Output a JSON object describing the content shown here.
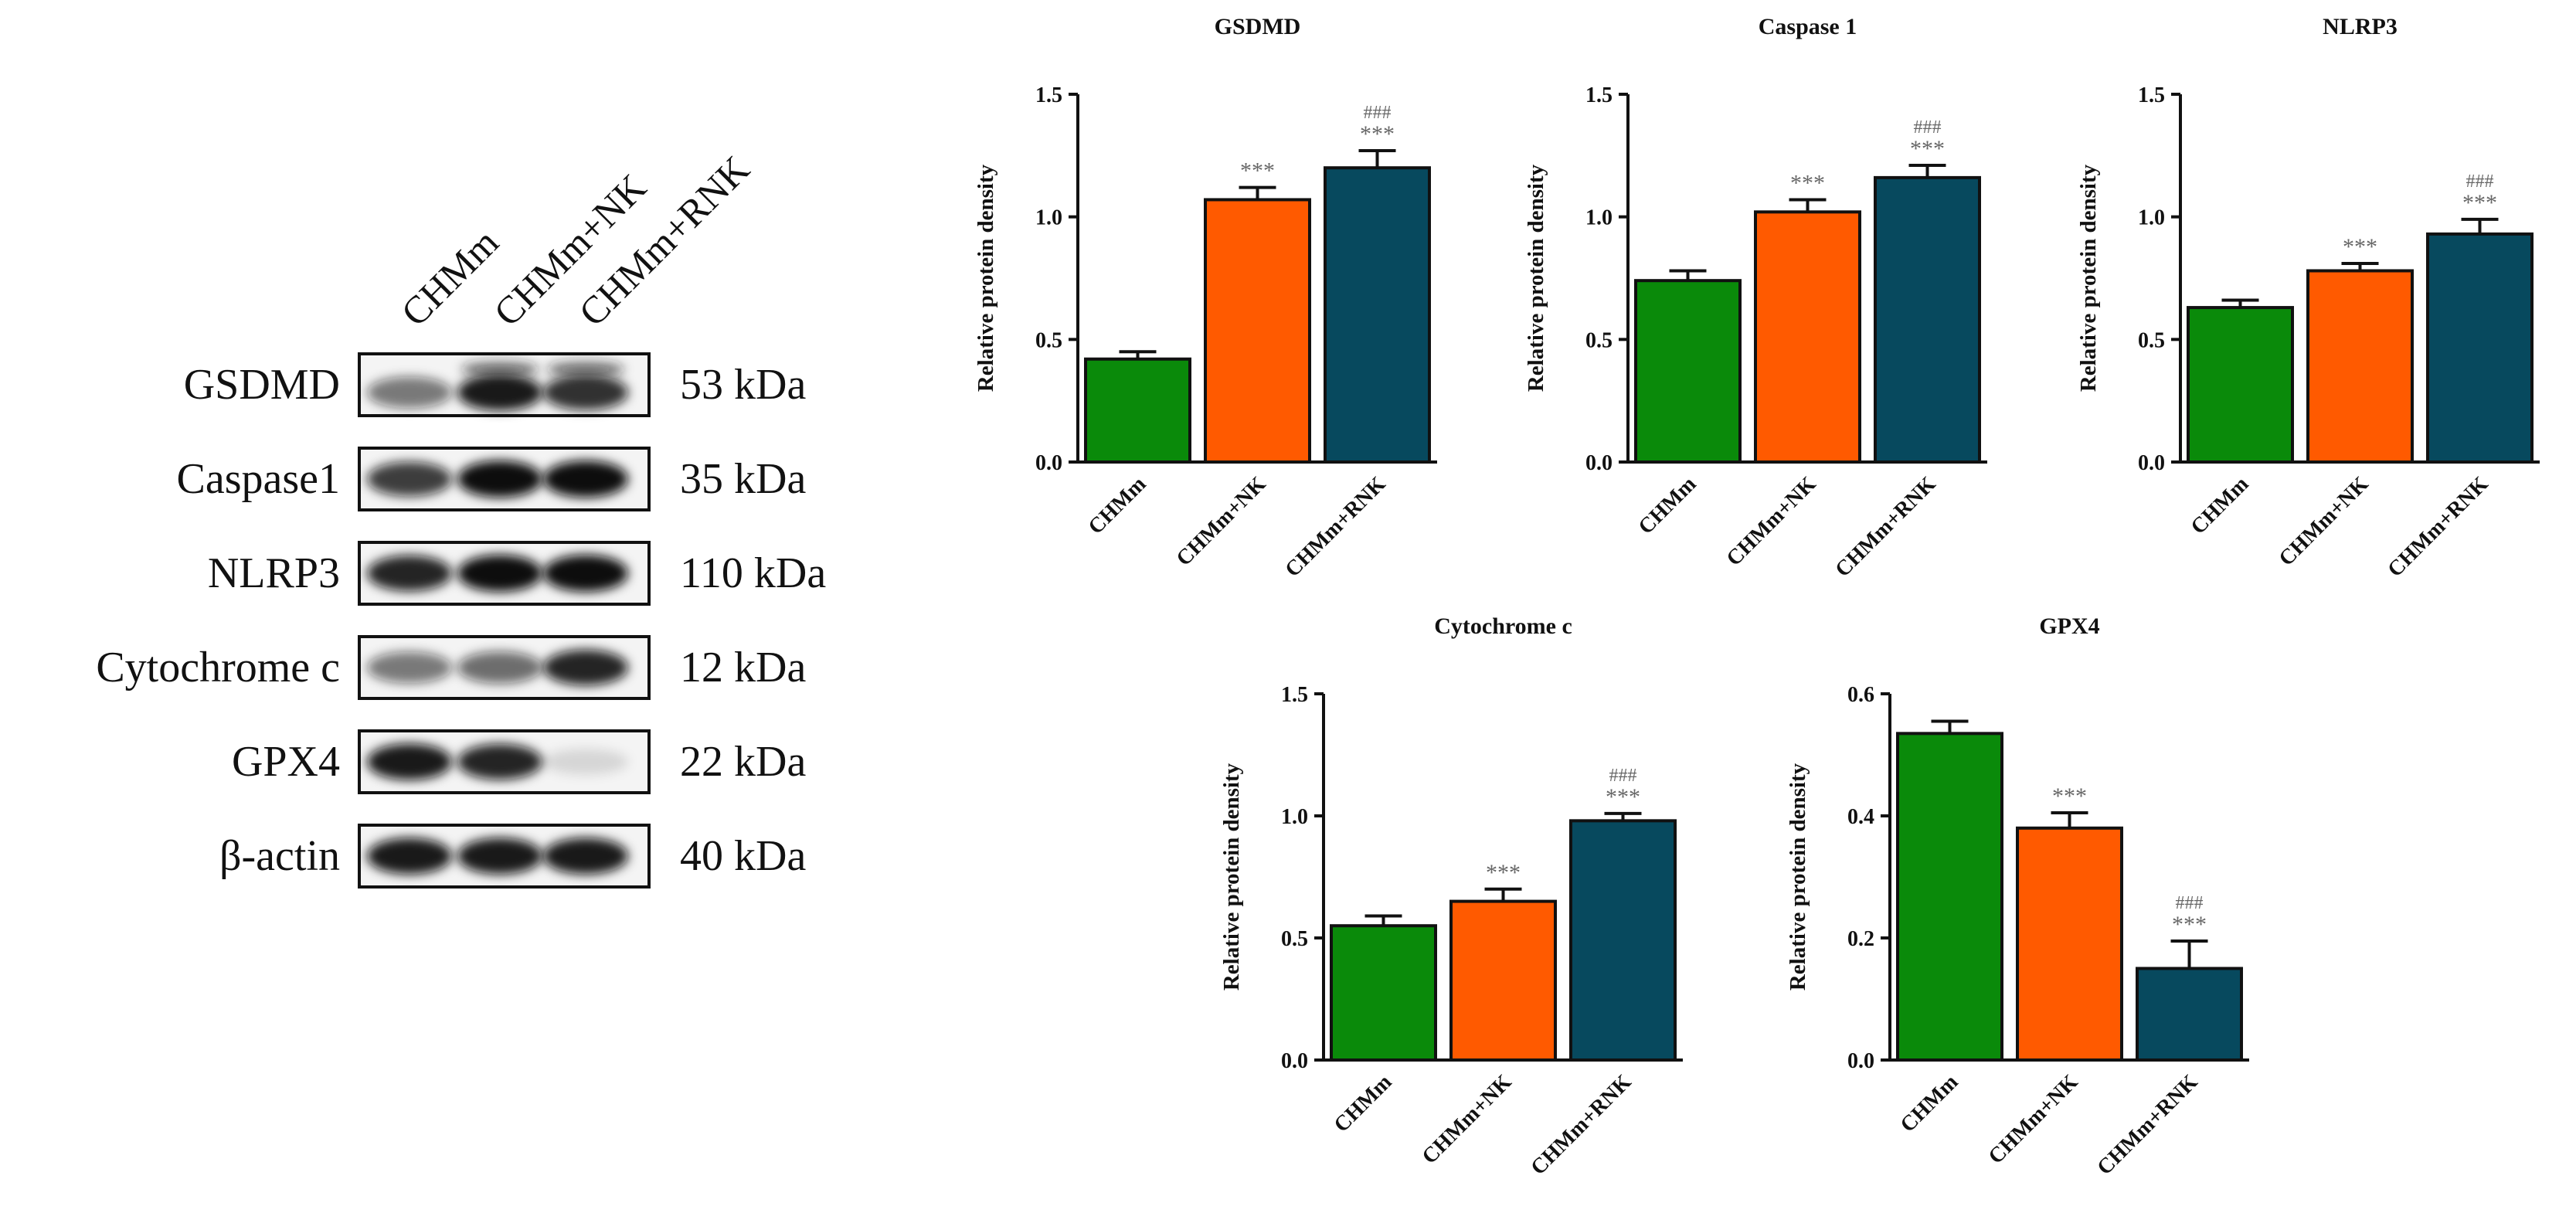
{
  "blot": {
    "lanes": [
      "CHMm",
      "CHMm+NK",
      "CHMm+RNK"
    ],
    "rows": [
      {
        "protein": "GSDMD",
        "size": "53 kDa",
        "intensity": [
          0.55,
          0.95,
          0.85
        ],
        "double": true
      },
      {
        "protein": "Caspase1",
        "size": "35 kDa",
        "intensity": [
          0.8,
          1.0,
          1.0
        ],
        "double": false
      },
      {
        "protein": "NLRP3",
        "size": "110 kDa",
        "intensity": [
          0.9,
          1.0,
          1.0
        ],
        "double": false
      },
      {
        "protein": "Cytochrome c",
        "size": "12 kDa",
        "intensity": [
          0.55,
          0.6,
          0.9
        ],
        "double": false
      },
      {
        "protein": "GPX4",
        "size": "22 kDa",
        "intensity": [
          0.95,
          0.9,
          0.12
        ],
        "double": false
      },
      {
        "protein": "β-actin",
        "size": "40 kDa",
        "intensity": [
          0.95,
          0.95,
          0.95
        ],
        "double": false
      }
    ]
  },
  "colors": {
    "CHMm": "#0a8a0a",
    "CHMm+NK": "#ff5a00",
    "CHMm+RNK": "#07495e",
    "annotation": "#666666"
  },
  "chart_data": [
    {
      "type": "bar",
      "title": "GSDMD",
      "ylabel": "Relative protein density",
      "categories": [
        "CHMm",
        "CHMm+NK",
        "CHMm+RNK"
      ],
      "values": [
        0.42,
        1.07,
        1.2
      ],
      "errors": [
        0.03,
        0.05,
        0.07
      ],
      "annotations": [
        [],
        [
          "***"
        ],
        [
          "###",
          "***"
        ]
      ],
      "ylim": [
        0,
        1.5
      ],
      "yticks": [
        0.0,
        0.5,
        1.0,
        1.5
      ],
      "ytick_labels": [
        "0.0",
        "0.5",
        "1.0",
        "1.5"
      ]
    },
    {
      "type": "bar",
      "title": "Caspase 1",
      "ylabel": "Relative protein density",
      "categories": [
        "CHMm",
        "CHMm+NK",
        "CHMm+RNK"
      ],
      "values": [
        0.74,
        1.02,
        1.16
      ],
      "errors": [
        0.04,
        0.05,
        0.05
      ],
      "annotations": [
        [],
        [
          "***"
        ],
        [
          "###",
          "***"
        ]
      ],
      "ylim": [
        0,
        1.5
      ],
      "yticks": [
        0.0,
        0.5,
        1.0,
        1.5
      ],
      "ytick_labels": [
        "0.0",
        "0.5",
        "1.0",
        "1.5"
      ]
    },
    {
      "type": "bar",
      "title": "NLRP3",
      "ylabel": "Relative protein density",
      "categories": [
        "CHMm",
        "CHMm+NK",
        "CHMm+RNK"
      ],
      "values": [
        0.63,
        0.78,
        0.93
      ],
      "errors": [
        0.03,
        0.03,
        0.06
      ],
      "annotations": [
        [],
        [
          "***"
        ],
        [
          "###",
          "***"
        ]
      ],
      "ylim": [
        0,
        1.5
      ],
      "yticks": [
        0.0,
        0.5,
        1.0,
        1.5
      ],
      "ytick_labels": [
        "0.0",
        "0.5",
        "1.0",
        "1.5"
      ]
    },
    {
      "type": "bar",
      "title": "Cytochrome c",
      "ylabel": "Relative protein density",
      "categories": [
        "CHMm",
        "CHMm+NK",
        "CHMm+RNK"
      ],
      "values": [
        0.55,
        0.65,
        0.98
      ],
      "errors": [
        0.04,
        0.05,
        0.03
      ],
      "annotations": [
        [],
        [
          "***"
        ],
        [
          "###",
          "***"
        ]
      ],
      "ylim": [
        0,
        1.5
      ],
      "yticks": [
        0.0,
        0.5,
        1.0,
        1.5
      ],
      "ytick_labels": [
        "0.0",
        "0.5",
        "1.0",
        "1.5"
      ]
    },
    {
      "type": "bar",
      "title": "GPX4",
      "ylabel": "Relative protein density",
      "categories": [
        "CHMm",
        "CHMm+NK",
        "CHMm+RNK"
      ],
      "values": [
        0.535,
        0.38,
        0.15
      ],
      "errors": [
        0.02,
        0.025,
        0.045
      ],
      "annotations": [
        [],
        [
          "***"
        ],
        [
          "###",
          "***"
        ]
      ],
      "ylim": [
        0,
        0.6
      ],
      "yticks": [
        0.0,
        0.2,
        0.4,
        0.6
      ],
      "ytick_labels": [
        "0.0",
        "0.2",
        "0.4",
        "0.6"
      ]
    }
  ]
}
